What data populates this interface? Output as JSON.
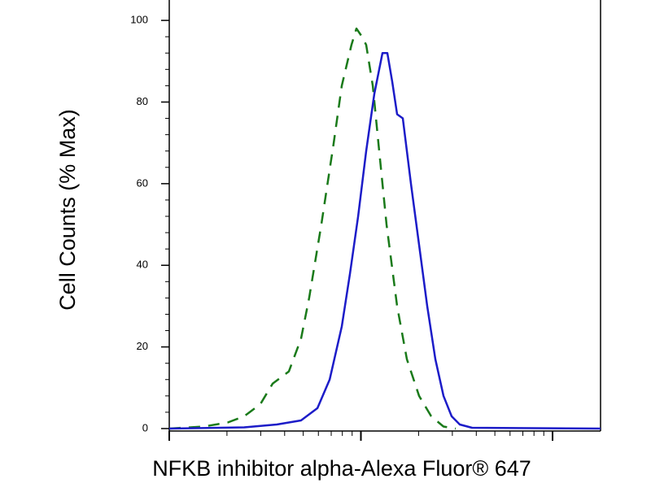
{
  "chart_data": {
    "type": "line",
    "xlabel": "NFKB inhibitor alpha-Alexa Fluor® 647",
    "ylabel": "Cell Counts (% Max)",
    "xscale": "log",
    "xlim": [
      100,
      17800
    ],
    "xticks": [
      100,
      1000,
      10000
    ],
    "ylim": [
      -0.6,
      105
    ],
    "yticks": [
      0,
      20,
      40,
      60,
      80,
      100
    ],
    "series": [
      {
        "color": "#1a7a1a",
        "dash": true,
        "x": [
          100,
          151,
          202,
          246,
          299,
          346,
          421,
          487,
          537,
          622,
          721,
          795,
          893,
          948,
          1014,
          1066,
          1153,
          1234,
          1361,
          1545,
          1738,
          2012,
          2328,
          2697,
          3126
        ],
        "values": [
          0,
          0.5,
          1.5,
          3,
          6,
          11,
          14,
          22,
          32,
          50,
          70,
          84,
          94,
          98,
          96,
          94,
          84,
          70,
          50,
          30,
          17,
          8,
          3,
          0.5,
          0
        ]
      },
      {
        "color": "#1c1cc8",
        "dash": false,
        "x": [
          100,
          246,
          364,
          487,
          593,
          687,
          795,
          877,
          967,
          1066,
          1175,
          1295,
          1374,
          1457,
          1545,
          1655,
          1824,
          2012,
          2218,
          2446,
          2697,
          2973,
          3281,
          3802,
          17800
        ],
        "values": [
          0,
          0.3,
          1,
          2,
          5,
          12,
          25,
          38,
          52,
          68,
          82,
          92,
          92,
          85,
          77,
          76,
          60,
          45,
          30,
          17,
          8,
          3,
          1,
          0.2,
          0
        ]
      }
    ]
  }
}
